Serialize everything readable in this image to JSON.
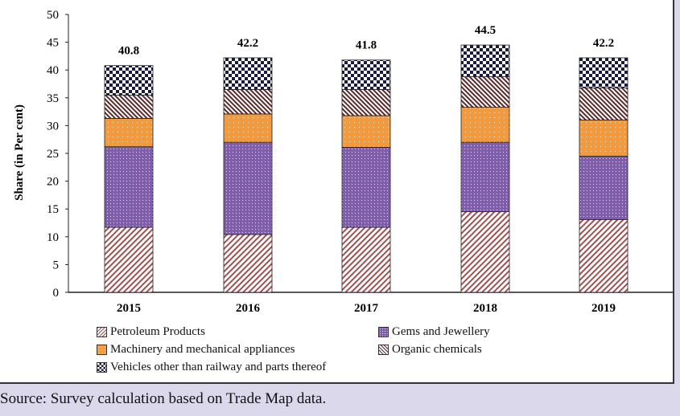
{
  "chart_data": {
    "type": "bar",
    "stacked": true,
    "ylabel": "Share (in Per cent)",
    "xlabel": "",
    "ylim": [
      0,
      50
    ],
    "yticks": [
      0,
      5,
      10,
      15,
      20,
      25,
      30,
      35,
      40,
      45,
      50
    ],
    "categories": [
      "2015",
      "2016",
      "2017",
      "2018",
      "2019"
    ],
    "totals": [
      "40.8",
      "42.2",
      "41.8",
      "44.5",
      "42.2"
    ],
    "series": [
      {
        "name": "Petroleum Products",
        "values": [
          11.7,
          10.4,
          11.7,
          14.5,
          13.1
        ],
        "color": "#a0504f",
        "pattern": "diagonal-up"
      },
      {
        "name": "Gems and Jewellery",
        "values": [
          14.5,
          16.6,
          14.4,
          12.5,
          11.4
        ],
        "color": "#7f5fa8",
        "pattern": "dots"
      },
      {
        "name": "Machinery and mechanical appliances",
        "values": [
          5.1,
          5.1,
          5.7,
          6.3,
          6.5
        ],
        "color": "#f39a3c",
        "pattern": "dots"
      },
      {
        "name": "Organic chemicals",
        "values": [
          4.2,
          4.4,
          4.7,
          5.5,
          5.8
        ],
        "color": "#5a2a2a",
        "pattern": "diagonal-down"
      },
      {
        "name": "Vehicles other than railway and parts thereof",
        "values": [
          5.3,
          5.7,
          5.3,
          5.7,
          5.4
        ],
        "color": "#1a1a3a",
        "pattern": "checker"
      }
    ],
    "legend_position": "bottom",
    "grid": false
  },
  "source": "Source: Survey calculation based on Trade Map data."
}
